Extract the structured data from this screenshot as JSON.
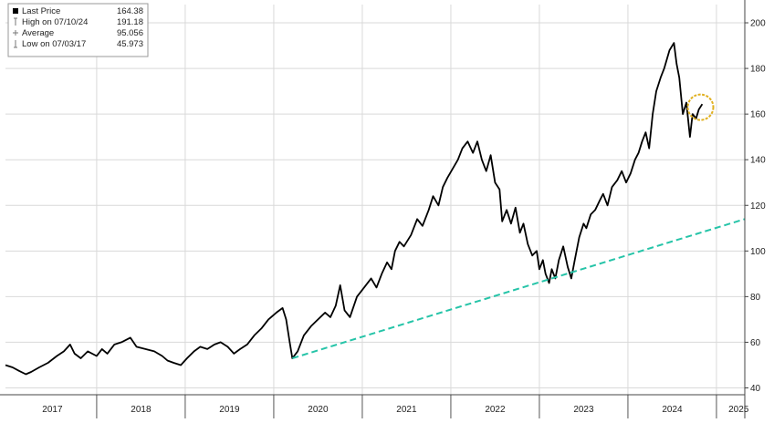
{
  "legend": {
    "entries": [
      {
        "name": "Last Price",
        "value": "164.38",
        "symbol": "filled-square"
      },
      {
        "name": "High on 07/10/24",
        "value": "191.18",
        "symbol": "up-arrow"
      },
      {
        "name": "Average",
        "value": "95.056",
        "symbol": "plus"
      },
      {
        "name": "Low on 07/03/17",
        "value": "45.973",
        "symbol": "down-arrow"
      }
    ]
  },
  "colors": {
    "price_line": "#000000",
    "trend_line": "#26c4a8",
    "highlight_circle": "#e0b020",
    "grid": "#d9d9d9",
    "axis_text": "#222222"
  },
  "chart_data": {
    "type": "line",
    "title": "",
    "xlabel": "",
    "ylabel": "",
    "y_axis_position": "right",
    "grid": true,
    "legend_position": "top-left",
    "ylim": [
      37,
      208
    ],
    "xlim": [
      2016.97,
      2025.32
    ],
    "y_ticks": [
      40,
      60,
      80,
      100,
      120,
      140,
      160,
      180,
      200
    ],
    "x_ticks": [
      {
        "label": "2017",
        "x": 2017.5
      },
      {
        "label": "2018",
        "x": 2018.5
      },
      {
        "label": "2019",
        "x": 2019.5
      },
      {
        "label": "2020",
        "x": 2020.5
      },
      {
        "label": "2021",
        "x": 2021.5
      },
      {
        "label": "2022",
        "x": 2022.5
      },
      {
        "label": "2023",
        "x": 2023.5
      },
      {
        "label": "2024",
        "x": 2024.5
      },
      {
        "label": "2025",
        "x": 2025.25
      }
    ],
    "year_boundaries": [
      2018,
      2019,
      2020,
      2021,
      2022,
      2023,
      2024,
      2025
    ],
    "series": [
      {
        "name": "Last Price",
        "style": "solid",
        "points": [
          [
            2016.97,
            50
          ],
          [
            2017.05,
            49
          ],
          [
            2017.12,
            47.5
          ],
          [
            2017.2,
            46
          ],
          [
            2017.26,
            47
          ],
          [
            2017.35,
            49
          ],
          [
            2017.45,
            51
          ],
          [
            2017.55,
            54
          ],
          [
            2017.63,
            56
          ],
          [
            2017.7,
            59
          ],
          [
            2017.75,
            55
          ],
          [
            2017.82,
            53
          ],
          [
            2017.9,
            56
          ],
          [
            2018.0,
            54
          ],
          [
            2018.06,
            57
          ],
          [
            2018.12,
            55
          ],
          [
            2018.2,
            59
          ],
          [
            2018.28,
            60
          ],
          [
            2018.38,
            62
          ],
          [
            2018.45,
            58
          ],
          [
            2018.55,
            57
          ],
          [
            2018.65,
            56
          ],
          [
            2018.74,
            54
          ],
          [
            2018.8,
            52
          ],
          [
            2018.87,
            51
          ],
          [
            2018.95,
            50
          ],
          [
            2019.02,
            53
          ],
          [
            2019.1,
            56
          ],
          [
            2019.17,
            58
          ],
          [
            2019.25,
            57
          ],
          [
            2019.33,
            59
          ],
          [
            2019.4,
            60
          ],
          [
            2019.48,
            58
          ],
          [
            2019.55,
            55
          ],
          [
            2019.62,
            57
          ],
          [
            2019.7,
            59
          ],
          [
            2019.78,
            63
          ],
          [
            2019.86,
            66
          ],
          [
            2019.94,
            70
          ],
          [
            2020.03,
            73
          ],
          [
            2020.1,
            75
          ],
          [
            2020.14,
            70
          ],
          [
            2020.18,
            60
          ],
          [
            2020.21,
            53
          ],
          [
            2020.27,
            56
          ],
          [
            2020.34,
            63
          ],
          [
            2020.42,
            67
          ],
          [
            2020.5,
            70
          ],
          [
            2020.58,
            73
          ],
          [
            2020.64,
            71
          ],
          [
            2020.7,
            76
          ],
          [
            2020.75,
            85
          ],
          [
            2020.8,
            74
          ],
          [
            2020.86,
            71
          ],
          [
            2020.94,
            80
          ],
          [
            2021.02,
            84
          ],
          [
            2021.1,
            88
          ],
          [
            2021.16,
            84
          ],
          [
            2021.22,
            90
          ],
          [
            2021.28,
            95
          ],
          [
            2021.33,
            92
          ],
          [
            2021.37,
            100
          ],
          [
            2021.42,
            104
          ],
          [
            2021.47,
            102
          ],
          [
            2021.55,
            107
          ],
          [
            2021.62,
            114
          ],
          [
            2021.68,
            111
          ],
          [
            2021.75,
            118
          ],
          [
            2021.8,
            124
          ],
          [
            2021.86,
            120
          ],
          [
            2021.91,
            128
          ],
          [
            2021.96,
            132
          ],
          [
            2022.02,
            136
          ],
          [
            2022.08,
            140
          ],
          [
            2022.13,
            145
          ],
          [
            2022.19,
            148
          ],
          [
            2022.25,
            143
          ],
          [
            2022.3,
            148
          ],
          [
            2022.35,
            140
          ],
          [
            2022.4,
            135
          ],
          [
            2022.45,
            142
          ],
          [
            2022.5,
            130
          ],
          [
            2022.55,
            127
          ],
          [
            2022.58,
            113
          ],
          [
            2022.63,
            118
          ],
          [
            2022.68,
            112
          ],
          [
            2022.73,
            119
          ],
          [
            2022.78,
            108
          ],
          [
            2022.82,
            112
          ],
          [
            2022.87,
            103
          ],
          [
            2022.92,
            98
          ],
          [
            2022.97,
            100
          ],
          [
            2023.0,
            92
          ],
          [
            2023.04,
            96
          ],
          [
            2023.07,
            90
          ],
          [
            2023.11,
            86
          ],
          [
            2023.14,
            92
          ],
          [
            2023.18,
            88
          ],
          [
            2023.22,
            96
          ],
          [
            2023.27,
            102
          ],
          [
            2023.32,
            93
          ],
          [
            2023.36,
            88
          ],
          [
            2023.4,
            96
          ],
          [
            2023.45,
            106
          ],
          [
            2023.5,
            112
          ],
          [
            2023.53,
            110
          ],
          [
            2023.58,
            116
          ],
          [
            2023.63,
            118
          ],
          [
            2023.68,
            122
          ],
          [
            2023.72,
            125
          ],
          [
            2023.77,
            120
          ],
          [
            2023.82,
            128
          ],
          [
            2023.88,
            131
          ],
          [
            2023.93,
            135
          ],
          [
            2023.98,
            130
          ],
          [
            2024.03,
            134
          ],
          [
            2024.08,
            140
          ],
          [
            2024.12,
            143
          ],
          [
            2024.16,
            148
          ],
          [
            2024.2,
            152
          ],
          [
            2024.24,
            145
          ],
          [
            2024.28,
            160
          ],
          [
            2024.32,
            170
          ],
          [
            2024.37,
            176
          ],
          [
            2024.41,
            180
          ],
          [
            2024.47,
            188
          ],
          [
            2024.52,
            191.18
          ],
          [
            2024.55,
            182
          ],
          [
            2024.58,
            176
          ],
          [
            2024.62,
            160
          ],
          [
            2024.66,
            165
          ],
          [
            2024.7,
            150
          ],
          [
            2024.73,
            160
          ],
          [
            2024.77,
            158
          ],
          [
            2024.8,
            162
          ],
          [
            2024.84,
            164.38
          ]
        ]
      },
      {
        "name": "Trend",
        "style": "dashed",
        "points": [
          [
            2020.21,
            53
          ],
          [
            2025.32,
            114
          ]
        ]
      }
    ],
    "annotations": [
      {
        "type": "circle",
        "x": 2024.82,
        "y": 163,
        "color": "#e0b020"
      }
    ]
  }
}
